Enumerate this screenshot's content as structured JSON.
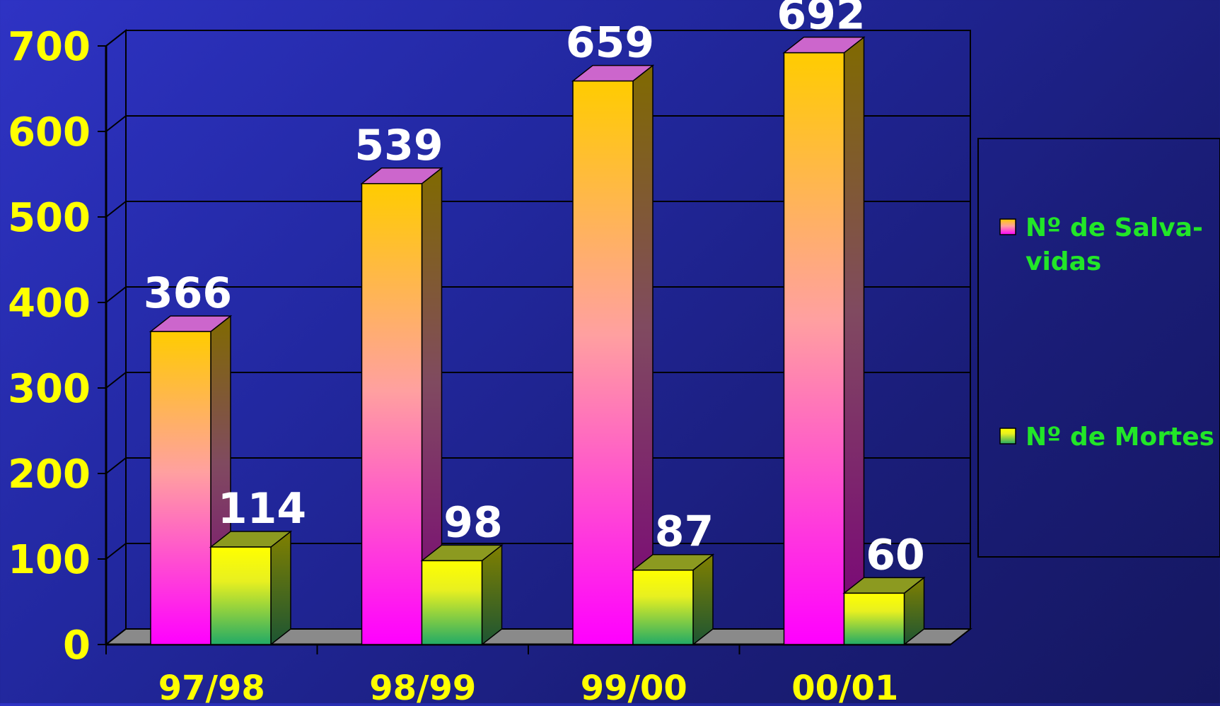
{
  "chart_data": {
    "type": "bar",
    "categories": [
      "97/98",
      "98/99",
      "99/00",
      "00/01"
    ],
    "series": [
      {
        "name": "Nº de Salva-vidas",
        "values": [
          366,
          539,
          659,
          692
        ],
        "legend_lines": [
          "Nº de Salva-",
          "vidas"
        ]
      },
      {
        "name": "Nº de Mortes",
        "values": [
          114,
          98,
          87,
          60
        ],
        "legend_lines": [
          "Nº de Mortes"
        ]
      }
    ],
    "yticks": [
      "0",
      "100",
      "200",
      "300",
      "400",
      "500",
      "600",
      "700"
    ],
    "ylim": [
      0,
      700
    ],
    "grid": true,
    "legend_position": "right",
    "style": "3d-bars",
    "colors": {
      "series1_top": "#ffcc00",
      "series1_mid": "#ffa0a0",
      "series1_bottom": "#ff00ff",
      "series2_top": "#ffff00",
      "series2_bottom": "#22aa66",
      "tick_text": "#ffff00",
      "data_label": "#ffffff",
      "legend_text": "#22e628"
    }
  }
}
